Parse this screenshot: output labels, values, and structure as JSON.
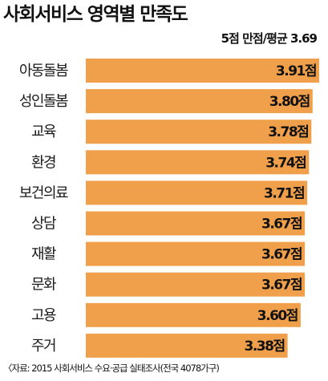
{
  "title": "사회서비스 영역별 만족도",
  "subtitle": "5점 만점/평균 3.69",
  "source": "〈자료: 2015 사회서비스 수요·공급 실태조사(전국 4078가구)",
  "colors": {
    "bar": "#f0a04b",
    "text": "#111111"
  },
  "chart_data": {
    "type": "bar",
    "orientation": "horizontal",
    "title": "사회서비스 영역별 만족도",
    "subtitle": "5점 만점/평균 3.69",
    "categories": [
      "아동돌봄",
      "성인돌봄",
      "교육",
      "환경",
      "보건의료",
      "상담",
      "재활",
      "문화",
      "고용",
      "주거"
    ],
    "values": [
      3.91,
      3.8,
      3.78,
      3.74,
      3.71,
      3.67,
      3.67,
      3.67,
      3.6,
      3.38
    ],
    "value_labels": [
      "3.91점",
      "3.80점",
      "3.78점",
      "3.74점",
      "3.71점",
      "3.67점",
      "3.67점",
      "3.67점",
      "3.60점",
      "3.38점"
    ],
    "unit": "점",
    "grid": false,
    "legend": "none"
  }
}
